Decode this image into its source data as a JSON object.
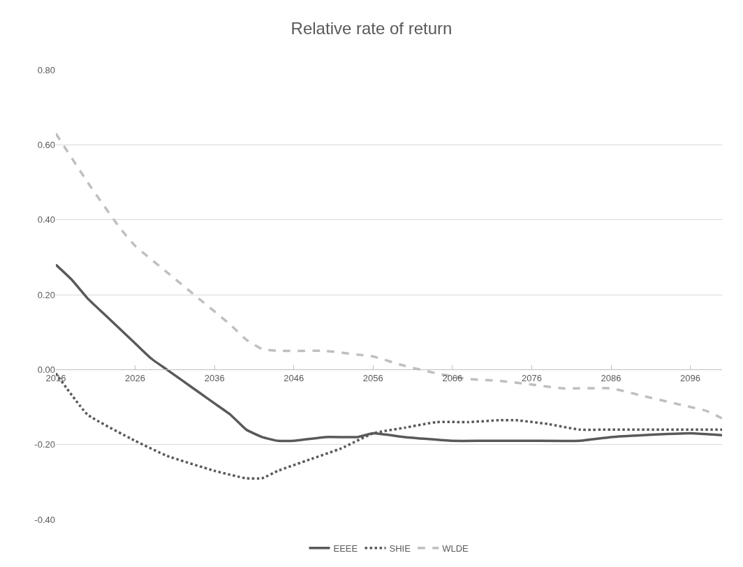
{
  "chart_data": {
    "type": "line",
    "title": "Relative rate of return",
    "xlim": [
      2016,
      2100
    ],
    "xticks": [
      2016,
      2026,
      2036,
      2046,
      2056,
      2066,
      2076,
      2086,
      2096
    ],
    "ylim": [
      -0.4,
      0.8
    ],
    "yticks": [
      {
        "value": -0.4,
        "label": "-0.40"
      },
      {
        "value": -0.2,
        "label": "-0.20"
      },
      {
        "value": 0,
        "label": "0.00"
      },
      {
        "value": 0.2,
        "label": "0.20"
      },
      {
        "value": 0.4,
        "label": "0.40"
      },
      {
        "value": 0.6,
        "label": "0.60"
      },
      {
        "value": 0.8,
        "label": "0.80"
      }
    ],
    "grid": "y",
    "legend": "bottom",
    "marker": "none",
    "series": [
      {
        "name": "EEEE",
        "color": "#595959",
        "line_style": "solid",
        "x": [
          2016,
          2018,
          2020,
          2022,
          2024,
          2026,
          2028,
          2030,
          2032,
          2034,
          2036,
          2038,
          2040,
          2042,
          2044,
          2046,
          2050,
          2054,
          2056,
          2060,
          2066,
          2070,
          2076,
          2082,
          2086,
          2090,
          2096,
          2100
        ],
        "values": [
          0.28,
          0.24,
          0.19,
          0.15,
          0.11,
          0.07,
          0.03,
          0.0,
          -0.03,
          -0.06,
          -0.09,
          -0.12,
          -0.16,
          -0.18,
          -0.19,
          -0.19,
          -0.18,
          -0.18,
          -0.17,
          -0.18,
          -0.19,
          -0.19,
          -0.19,
          -0.19,
          -0.18,
          -0.175,
          -0.17,
          -0.175
        ]
      },
      {
        "name": "SHIE",
        "color": "#595959",
        "line_style": "dotted",
        "x": [
          2016,
          2020,
          2026,
          2030,
          2036,
          2040,
          2042,
          2044,
          2048,
          2052,
          2056,
          2060,
          2064,
          2068,
          2072,
          2074,
          2078,
          2082,
          2086,
          2100
        ],
        "values": [
          -0.01,
          -0.12,
          -0.19,
          -0.23,
          -0.27,
          -0.29,
          -0.29,
          -0.27,
          -0.24,
          -0.21,
          -0.17,
          -0.155,
          -0.14,
          -0.14,
          -0.135,
          -0.135,
          -0.145,
          -0.16,
          -0.16,
          -0.16
        ]
      },
      {
        "name": "WLDE",
        "color": "#bfbfbf",
        "line_style": "dashed",
        "x": [
          2016,
          2020,
          2024,
          2026,
          2030,
          2034,
          2038,
          2040,
          2042,
          2044,
          2050,
          2054,
          2056,
          2060,
          2064,
          2068,
          2072,
          2076,
          2080,
          2086,
          2090,
          2094,
          2098,
          2100
        ],
        "values": [
          0.63,
          0.5,
          0.38,
          0.33,
          0.26,
          0.19,
          0.12,
          0.08,
          0.055,
          0.05,
          0.05,
          0.04,
          0.035,
          0.01,
          -0.01,
          -0.025,
          -0.03,
          -0.04,
          -0.05,
          -0.05,
          -0.07,
          -0.09,
          -0.11,
          -0.13
        ]
      }
    ]
  }
}
